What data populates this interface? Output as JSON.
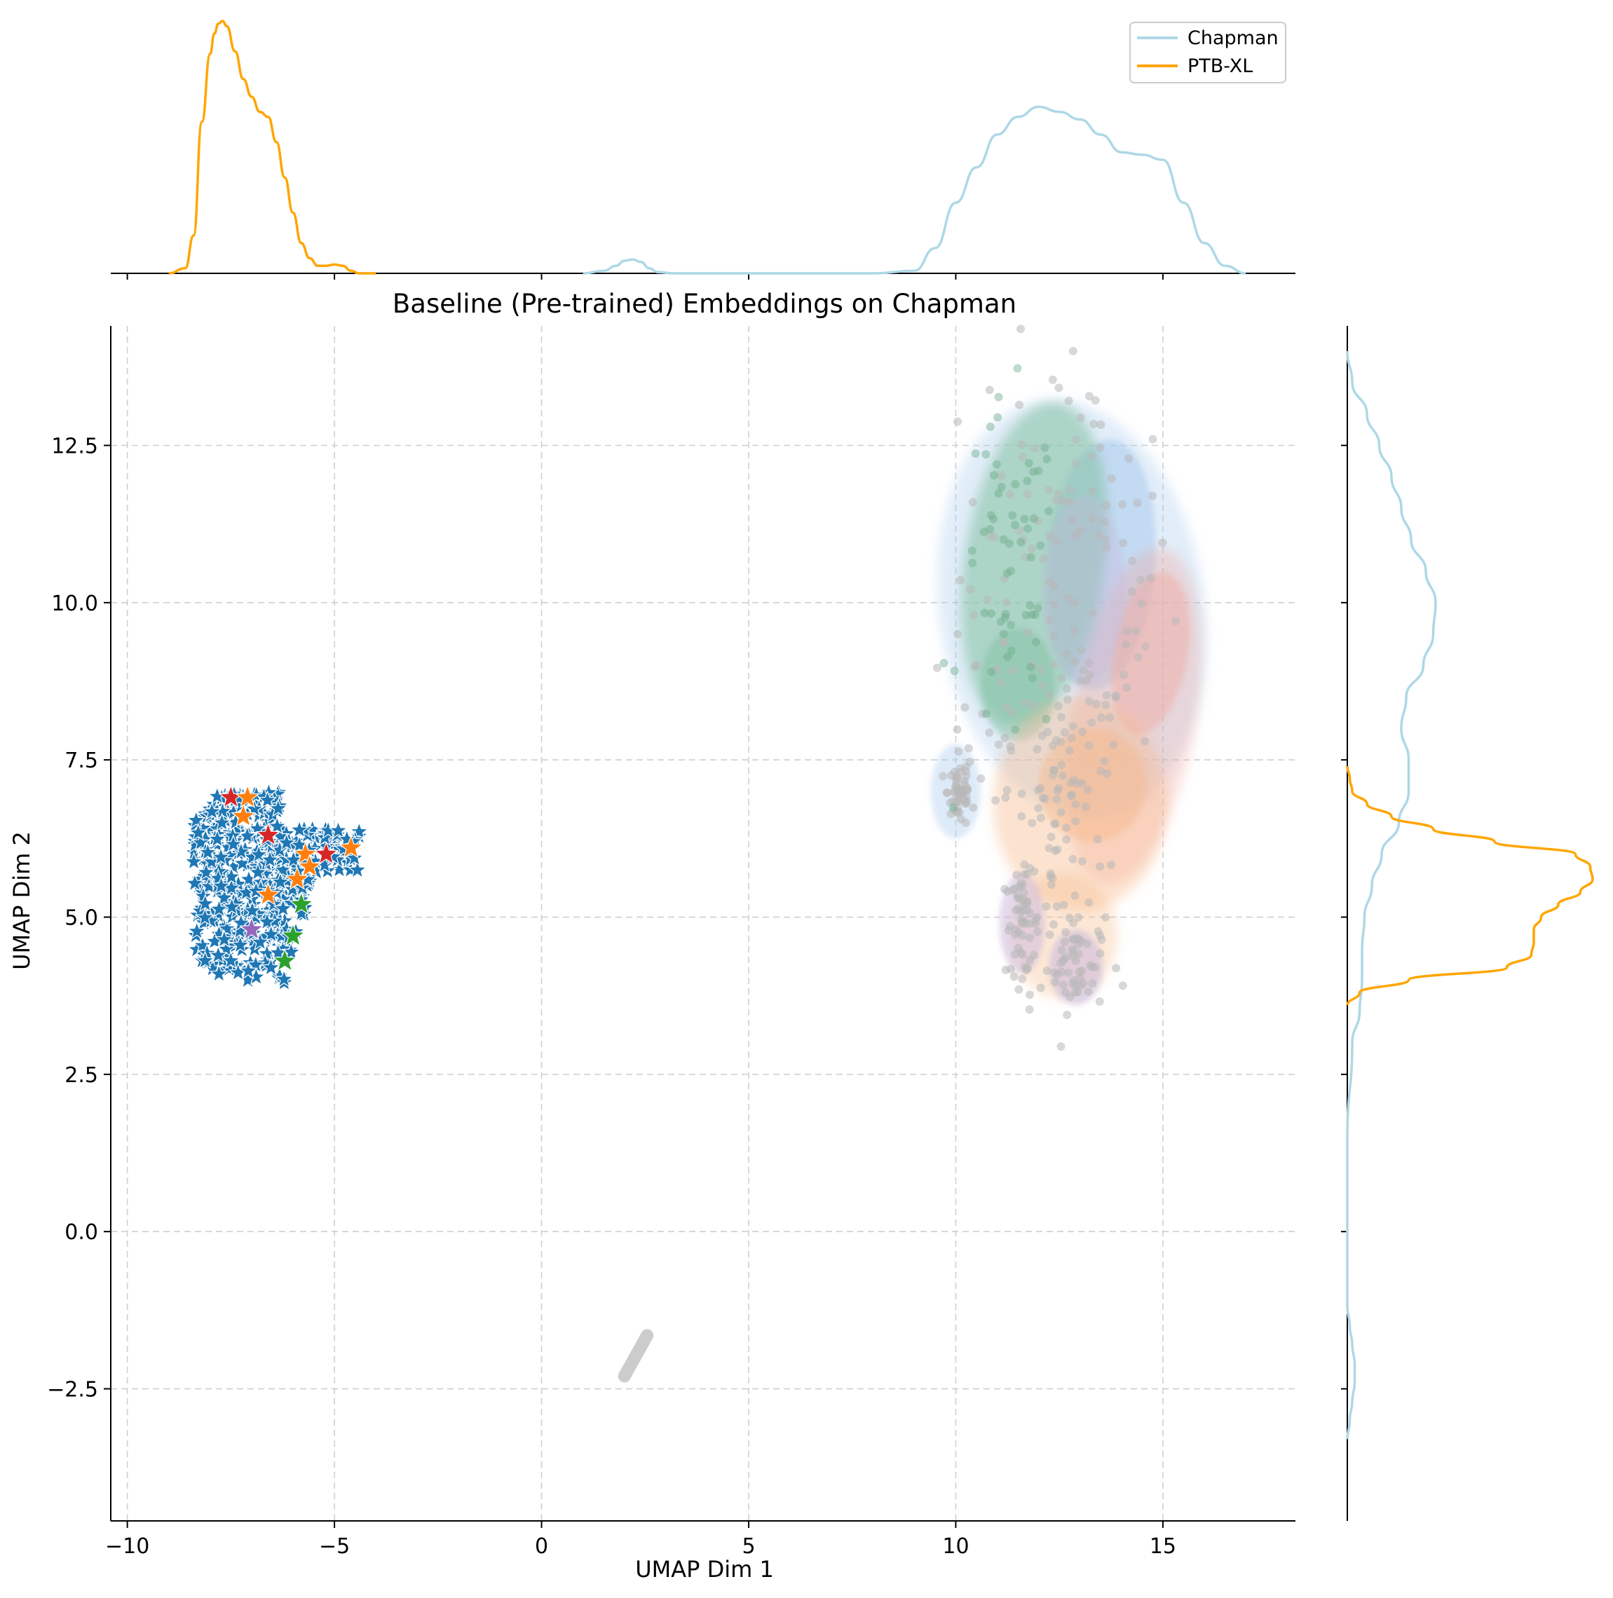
{
  "chart_data": {
    "type": "scatter",
    "title": "Baseline (Pre-trained) Embeddings on Chapman",
    "xlabel": "UMAP Dim 1",
    "ylabel": "UMAP Dim 2",
    "xlim": [
      -10.4,
      18.2
    ],
    "ylim": [
      -4.6,
      14.4
    ],
    "grid": true,
    "x_ticks": [
      {
        "value": -10,
        "label": "−10"
      },
      {
        "value": -5,
        "label": "−5"
      },
      {
        "value": 0,
        "label": "0"
      },
      {
        "value": 5,
        "label": "5"
      },
      {
        "value": 10,
        "label": "10"
      },
      {
        "value": 15,
        "label": "15"
      }
    ],
    "y_ticks": [
      {
        "value": -2.5,
        "label": "−2.5"
      },
      {
        "value": 0.0,
        "label": "0.0"
      },
      {
        "value": 2.5,
        "label": "2.5"
      },
      {
        "value": 5.0,
        "label": "5.0"
      },
      {
        "value": 7.5,
        "label": "7.5"
      },
      {
        "value": 10.0,
        "label": "10.0"
      },
      {
        "value": 12.5,
        "label": "12.5"
      }
    ],
    "legend": {
      "position": "top-right",
      "entries": [
        {
          "label": "Chapman",
          "color": "#add8e6"
        },
        {
          "label": "PTB-XL",
          "color": "#ffa500"
        }
      ]
    },
    "series": [
      {
        "name": "Chapman",
        "color": "#add8e6",
        "marker": "circle",
        "x_range": [
          9.8,
          15.9
        ],
        "y_range": [
          3.6,
          13.3
        ]
      },
      {
        "name": "PTB-XL",
        "color": "#1f77b4",
        "marker": "star",
        "x_range": [
          -8.5,
          -4.4
        ],
        "y_range": [
          3.9,
          7.0
        ]
      }
    ],
    "marginal_x": {
      "y_scale_max": 1.0,
      "series": [
        {
          "name": "PTB-XL",
          "color": "#ffa500",
          "x": [
            -9.0,
            -8.6,
            -8.4,
            -8.2,
            -8.0,
            -7.9,
            -7.8,
            -7.7,
            -7.6,
            -7.4,
            -7.2,
            -7.0,
            -6.8,
            -6.6,
            -6.4,
            -6.2,
            -6.0,
            -5.8,
            -5.6,
            -5.4,
            -5.2,
            -5.0,
            -4.8,
            -4.6,
            -4.4,
            -4.2,
            -4.0
          ],
          "y": [
            0,
            0.02,
            0.15,
            0.6,
            0.87,
            0.95,
            0.99,
            1.0,
            0.98,
            0.88,
            0.77,
            0.7,
            0.64,
            0.62,
            0.52,
            0.38,
            0.24,
            0.12,
            0.06,
            0.03,
            0.03,
            0.035,
            0.03,
            0.01,
            0,
            0,
            0
          ]
        },
        {
          "name": "Chapman",
          "color": "#add8e6",
          "x": [
            1.0,
            1.5,
            1.8,
            2.0,
            2.2,
            2.4,
            2.6,
            2.8,
            3.2,
            4.0,
            6.0,
            8.0,
            9.0,
            9.5,
            10.0,
            10.5,
            11.0,
            11.5,
            12.0,
            12.5,
            13.0,
            13.5,
            14.0,
            14.5,
            15.0,
            15.5,
            16.0,
            16.5,
            17.0
          ],
          "y": [
            0,
            0.01,
            0.03,
            0.05,
            0.055,
            0.045,
            0.02,
            0.005,
            0,
            0,
            0,
            0,
            0.01,
            0.1,
            0.28,
            0.42,
            0.55,
            0.62,
            0.66,
            0.64,
            0.61,
            0.55,
            0.48,
            0.47,
            0.45,
            0.28,
            0.12,
            0.03,
            0
          ]
        }
      ]
    },
    "marginal_y": {
      "x_scale_max": 1.0,
      "series": [
        {
          "name": "Chapman",
          "color": "#add8e6",
          "y": [
            -3.3,
            -3.0,
            -2.7,
            -2.4,
            -2.1,
            -1.8,
            -1.5,
            -1.2,
            -0.5,
            1.5,
            3.0,
            3.5,
            4.0,
            4.5,
            5.0,
            5.5,
            6.0,
            6.5,
            7.0,
            7.5,
            8.0,
            8.5,
            9.0,
            9.5,
            10.0,
            10.5,
            11.0,
            11.5,
            12.0,
            12.5,
            13.0,
            13.5,
            14.0
          ],
          "x": [
            0,
            0.01,
            0.02,
            0.03,
            0.03,
            0.02,
            0.01,
            0,
            0,
            0,
            0.02,
            0.05,
            0.06,
            0.06,
            0.07,
            0.1,
            0.14,
            0.21,
            0.25,
            0.25,
            0.22,
            0.24,
            0.31,
            0.35,
            0.36,
            0.32,
            0.26,
            0.22,
            0.18,
            0.13,
            0.08,
            0.02,
            0
          ]
        },
        {
          "name": "PTB-XL",
          "color": "#ffa500",
          "y": [
            3.6,
            3.8,
            4.0,
            4.2,
            4.4,
            4.6,
            4.8,
            5.0,
            5.2,
            5.4,
            5.6,
            5.8,
            6.0,
            6.2,
            6.4,
            6.6,
            6.8,
            7.0,
            7.2,
            7.4
          ],
          "x": [
            0,
            0.05,
            0.25,
            0.65,
            0.75,
            0.76,
            0.76,
            0.79,
            0.86,
            0.95,
            1.0,
            0.99,
            0.93,
            0.6,
            0.35,
            0.18,
            0.08,
            0.02,
            0.01,
            0
          ]
        }
      ]
    },
    "clusters": [
      {
        "name": "chapman-blue-region",
        "color": "#a9cbee"
      },
      {
        "name": "chapman-green-region",
        "color": "#7fbf9f"
      },
      {
        "name": "chapman-red-region",
        "color": "#f2a8a0"
      },
      {
        "name": "chapman-orange-region",
        "color": "#f7b98a"
      },
      {
        "name": "chapman-purple-region",
        "color": "#c9b6dc"
      },
      {
        "name": "chapman-gray-points",
        "color": "#b8b8b8"
      },
      {
        "name": "ptbxl-blue-stars",
        "color": "#1f77b4"
      },
      {
        "name": "ptbxl-orange-stars",
        "color": "#ff7f0e"
      },
      {
        "name": "ptbxl-red-stars",
        "color": "#d62728"
      },
      {
        "name": "ptbxl-green-stars",
        "color": "#2ca02c"
      },
      {
        "name": "ptbxl-purple-stars",
        "color": "#9467bd"
      },
      {
        "name": "outlier-gray-strip",
        "color": "#cccccc"
      }
    ]
  }
}
